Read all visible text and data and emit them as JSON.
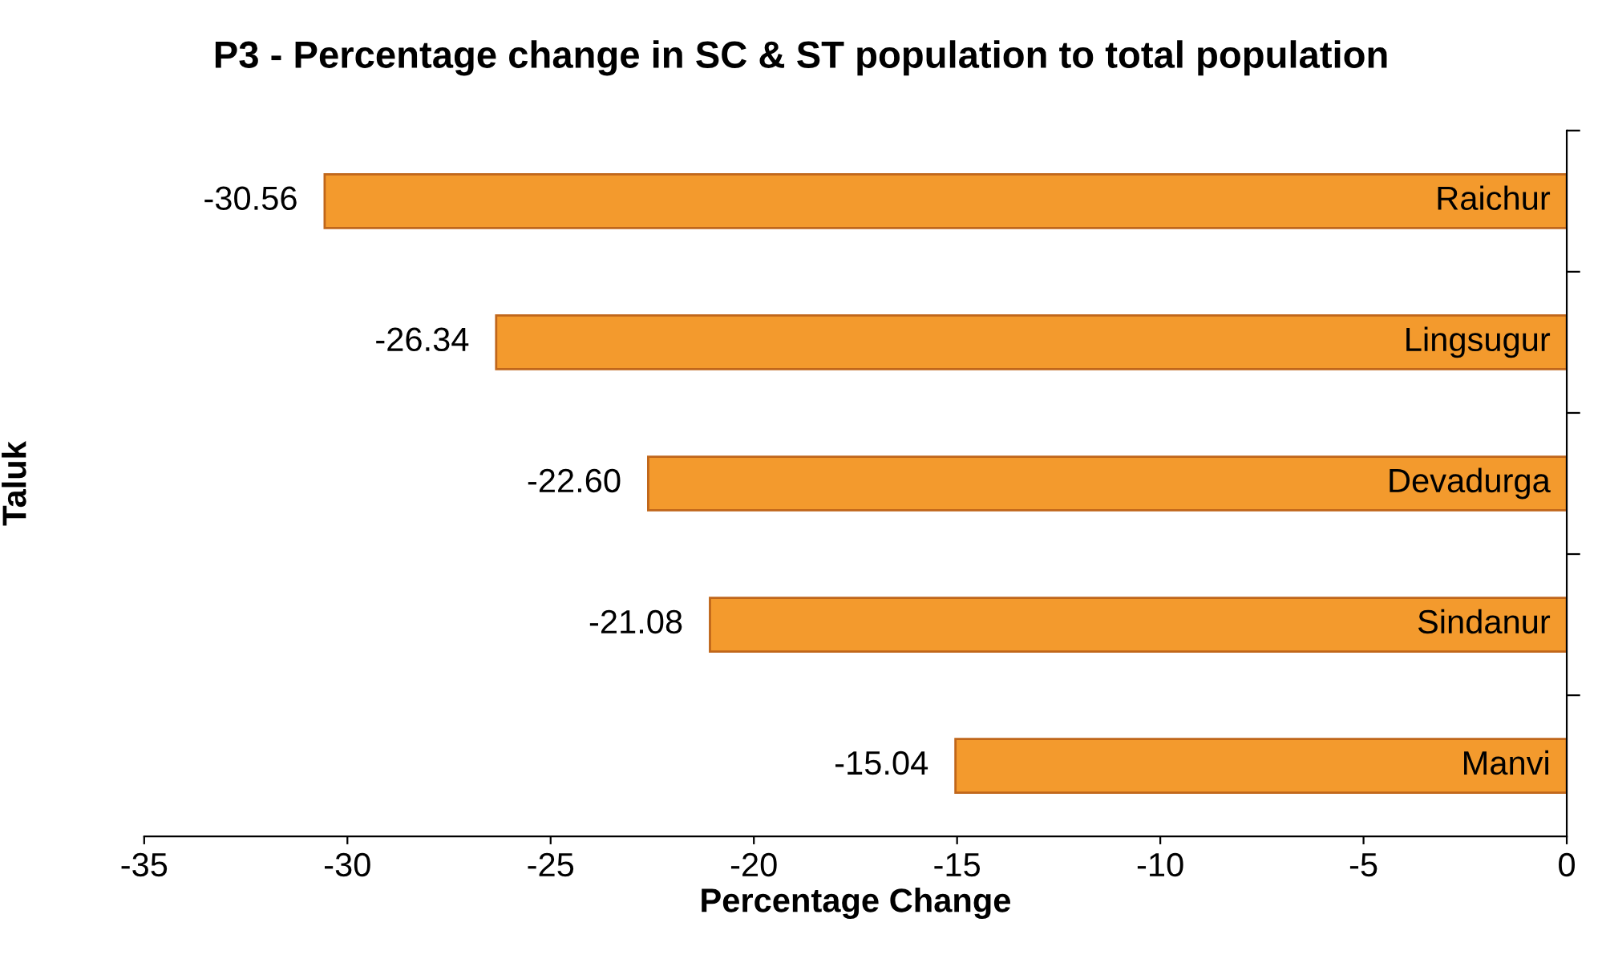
{
  "chart_data": {
    "type": "bar",
    "orientation": "horizontal",
    "title": "P3 - Percentage change in SC & ST population to total population",
    "xlabel": "Percentage Change",
    "ylabel": "Taluk",
    "categories": [
      "Raichur",
      "Lingsugur",
      "Devadurga",
      "Sindanur",
      "Manvi"
    ],
    "values": [
      -30.56,
      -26.34,
      -22.6,
      -21.08,
      -15.04
    ],
    "value_labels": [
      "-30.56",
      "-26.34",
      "-22.60",
      "-21.08",
      "-15.04"
    ],
    "color": "#f39a2d",
    "xlim": [
      -35,
      0
    ],
    "xticks": [
      -35,
      -30,
      -25,
      -20,
      -15,
      -10,
      -5,
      0
    ],
    "grid": false,
    "legend": false
  }
}
